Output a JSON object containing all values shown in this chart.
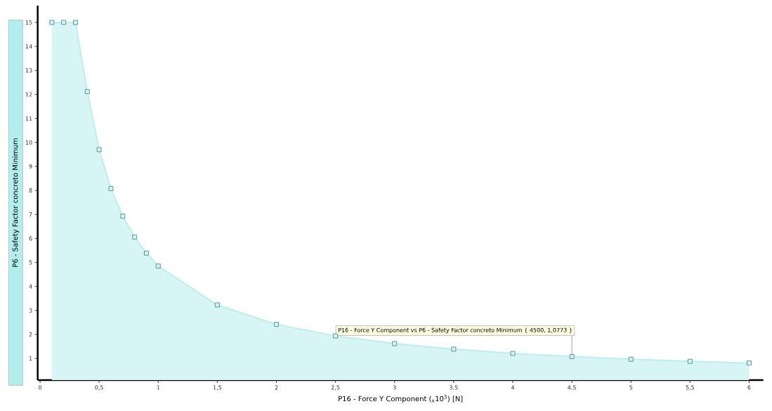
{
  "chart_data": {
    "type": "area",
    "xlabel": "P16 - Force Y Component  ($_{x}$10$^{3}$)  [N]",
    "ylabel": "P6 - Safety Factor concreto Minimum",
    "x": [
      0.1,
      0.2,
      0.3,
      0.4,
      0.5,
      0.6,
      0.7,
      0.8,
      0.9,
      1.0,
      1.5,
      2.0,
      2.5,
      3.0,
      3.5,
      4.0,
      4.5,
      5.0,
      5.5,
      6.0
    ],
    "series": [
      {
        "color": "#bdeeee",
        "values": [
          15,
          15,
          15,
          12.12,
          9.7,
          8.08,
          6.93,
          6.06,
          5.39,
          4.85,
          3.23,
          2.42,
          1.94,
          1.62,
          1.39,
          1.21,
          1.0773,
          0.97,
          0.88,
          0.81
        ]
      }
    ],
    "marker": "square",
    "xlim": [
      -0.02,
      6.12
    ],
    "ylim": [
      0.1,
      15.7
    ],
    "xticks": [
      0,
      {
        "value": 0.5,
        "label": "0,5"
      },
      1,
      {
        "value": 1.5,
        "label": "1,5"
      },
      2,
      {
        "value": 2.5,
        "label": "2,5"
      },
      3,
      {
        "value": 3.5,
        "label": "3,5"
      },
      4,
      {
        "value": 4.5,
        "label": "4,5"
      },
      5,
      {
        "value": 5.5,
        "label": "5,5"
      },
      6
    ],
    "yticks": [
      1,
      2,
      3,
      4,
      5,
      6,
      7,
      8,
      9,
      10,
      11,
      12,
      13,
      14,
      15
    ],
    "annotations": [
      {
        "text": "P16 - Force Y Component vs P6 - Safety Factor concreto Minimum { 4500, 1,0773 }",
        "x": 4.5,
        "y": 1.0773
      }
    ]
  }
}
